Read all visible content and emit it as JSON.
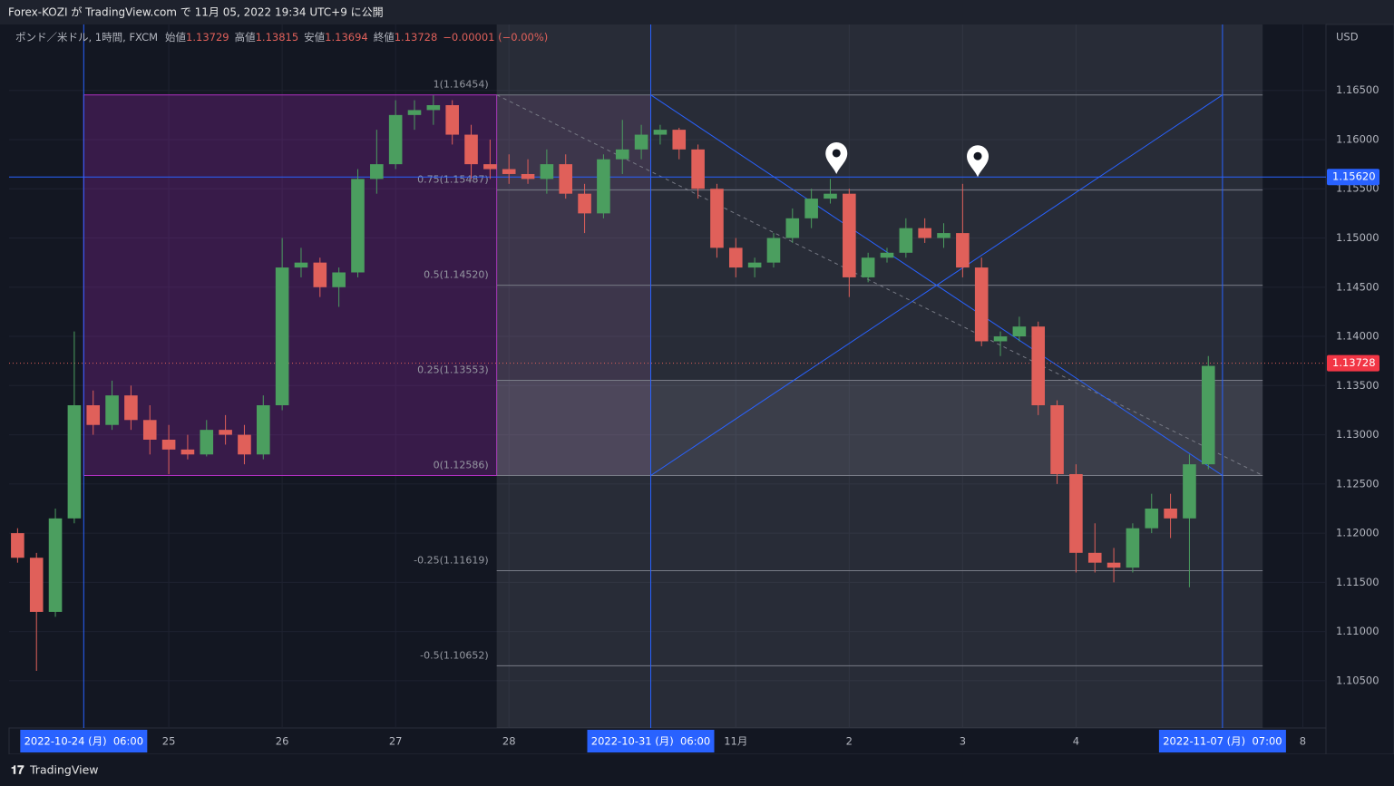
{
  "header": "Forex-KOZI が TradingView.com で 11月 05, 2022 19:34 UTC+9 に公開",
  "footer": "TradingView",
  "chart_data": {
    "type": "candlestick",
    "symbol": "ポンド／米ドル, 1時間, FXCM",
    "ohlc_legend": [
      {
        "name": "始値",
        "value": 1.13729
      },
      {
        "name": "高値",
        "value": 1.13815
      },
      {
        "name": "安値",
        "value": 1.13694
      },
      {
        "name": "終値",
        "value": 1.13728
      }
    ],
    "change": "−0.00001 (−0.00%)",
    "currency": "USD",
    "up_color": "#4b9e5f",
    "down_color": "#e0605a",
    "ylim": [
      1.1002,
      1.1717
    ],
    "yticks": [
      {
        "value": 1.105,
        "label": "1.10500"
      },
      {
        "value": 1.11,
        "label": "1.11000"
      },
      {
        "value": 1.115,
        "label": "1.11500"
      },
      {
        "value": 1.12,
        "label": "1.12000"
      },
      {
        "value": 1.125,
        "label": "1.12500"
      },
      {
        "value": 1.13,
        "label": "1.13000"
      },
      {
        "value": 1.135,
        "label": "1.13500"
      },
      {
        "value": 1.14,
        "label": "1.14000"
      },
      {
        "value": 1.145,
        "label": "1.14500"
      },
      {
        "value": 1.15,
        "label": "1.15000"
      },
      {
        "value": 1.155,
        "label": "1.15500"
      },
      {
        "value": 1.16,
        "label": "1.16000"
      },
      {
        "value": 1.165,
        "label": "1.16500"
      }
    ],
    "xlim": [
      -9.8,
      268.9
    ],
    "xticks": [
      {
        "value": 24,
        "label": "25"
      },
      {
        "value": 48,
        "label": "26"
      },
      {
        "value": 72,
        "label": "27"
      },
      {
        "value": 96,
        "label": "28"
      },
      {
        "value": 144,
        "label": "11月"
      },
      {
        "value": 168,
        "label": "2"
      },
      {
        "value": 192,
        "label": "3"
      },
      {
        "value": 216,
        "label": "4"
      },
      {
        "value": 264,
        "label": "8"
      }
    ],
    "crosshair_x": [
      {
        "value": 6,
        "label": "2022-10-24 (月)  06:00"
      },
      {
        "value": 126,
        "label": "2022-10-31 (月)  06:00"
      },
      {
        "value": 247,
        "label": "2022-11-07 (月)  07:00"
      }
    ],
    "hline": {
      "value": 1.1562,
      "label": "1.15620"
    },
    "last_price": {
      "value": 1.13728,
      "label": "1.13728"
    },
    "fib_x": [
      93.4,
      255.5
    ],
    "fib_levels": [
      {
        "value": 1.16454,
        "label": "1(1.16454)"
      },
      {
        "value": 1.15487,
        "label": "0.75(1.15487)"
      },
      {
        "value": 1.1452,
        "label": "0.5(1.14520)"
      },
      {
        "value": 1.13553,
        "label": "0.25(1.13553)"
      },
      {
        "value": 1.12586,
        "label": "0(1.12586)"
      },
      {
        "value": 1.11619,
        "label": "-0.25(1.11619)"
      },
      {
        "value": 1.10652,
        "label": "-0.5(1.10652)"
      }
    ],
    "markers": [
      {
        "x": 165.3,
        "y": 1.1565
      },
      {
        "x": 195.2,
        "y": 1.1562
      }
    ],
    "candles": {
      "x": [
        -8,
        -4,
        0,
        4,
        8,
        12,
        16,
        20,
        24,
        28,
        32,
        36,
        40,
        44,
        48,
        52,
        56,
        60,
        64,
        68,
        72,
        76,
        80,
        84,
        88,
        92,
        96,
        100,
        104,
        108,
        112,
        116,
        120,
        124,
        128,
        132,
        136,
        140,
        144,
        148,
        152,
        156,
        160,
        164,
        168,
        172,
        176,
        180,
        184,
        188,
        192,
        196,
        200,
        204,
        208,
        212,
        216,
        220,
        224,
        228,
        232,
        236,
        240,
        244
      ],
      "open": [
        1.12,
        1.1175,
        1.112,
        1.1215,
        1.133,
        1.131,
        1.134,
        1.1315,
        1.1295,
        1.1285,
        1.128,
        1.1305,
        1.13,
        1.128,
        1.133,
        1.147,
        1.1475,
        1.145,
        1.1465,
        1.156,
        1.1575,
        1.1625,
        1.163,
        1.1635,
        1.1605,
        1.1575,
        1.157,
        1.1565,
        1.156,
        1.1575,
        1.1545,
        1.1525,
        1.158,
        1.159,
        1.1605,
        1.161,
        1.159,
        1.155,
        1.149,
        1.147,
        1.1475,
        1.15,
        1.152,
        1.154,
        1.1545,
        1.146,
        1.148,
        1.1485,
        1.151,
        1.15,
        1.1505,
        1.147,
        1.1395,
        1.14,
        1.141,
        1.133,
        1.126,
        1.118,
        1.117,
        1.1165,
        1.1205,
        1.1225,
        1.1215,
        1.127
      ],
      "high": [
        1.1205,
        1.118,
        1.1225,
        1.1405,
        1.1345,
        1.1355,
        1.135,
        1.133,
        1.131,
        1.13,
        1.1315,
        1.132,
        1.131,
        1.134,
        1.15,
        1.149,
        1.148,
        1.147,
        1.157,
        1.161,
        1.164,
        1.164,
        1.1645,
        1.164,
        1.1615,
        1.16,
        1.1585,
        1.158,
        1.159,
        1.1585,
        1.1555,
        1.1585,
        1.162,
        1.1615,
        1.1615,
        1.1612,
        1.1595,
        1.1555,
        1.15,
        1.148,
        1.1505,
        1.153,
        1.155,
        1.156,
        1.155,
        1.1485,
        1.149,
        1.152,
        1.152,
        1.1515,
        1.1555,
        1.148,
        1.1405,
        1.142,
        1.1415,
        1.1335,
        1.127,
        1.121,
        1.1185,
        1.121,
        1.124,
        1.124,
        1.128,
        1.138
      ],
      "low": [
        1.117,
        1.106,
        1.1115,
        1.121,
        1.13,
        1.1305,
        1.1305,
        1.128,
        1.126,
        1.1275,
        1.1278,
        1.129,
        1.127,
        1.1275,
        1.1325,
        1.146,
        1.144,
        1.143,
        1.146,
        1.1545,
        1.157,
        1.161,
        1.1615,
        1.1595,
        1.156,
        1.156,
        1.1555,
        1.1555,
        1.1545,
        1.154,
        1.1505,
        1.152,
        1.1565,
        1.158,
        1.1595,
        1.158,
        1.154,
        1.148,
        1.146,
        1.146,
        1.147,
        1.1495,
        1.151,
        1.1535,
        1.144,
        1.1455,
        1.1475,
        1.148,
        1.1495,
        1.149,
        1.146,
        1.139,
        1.138,
        1.1395,
        1.132,
        1.125,
        1.116,
        1.116,
        1.115,
        1.116,
        1.12,
        1.1195,
        1.1145,
        1.1265
      ],
      "close": [
        1.1175,
        1.112,
        1.1215,
        1.133,
        1.131,
        1.134,
        1.1315,
        1.1295,
        1.1285,
        1.128,
        1.1305,
        1.13,
        1.128,
        1.133,
        1.147,
        1.1475,
        1.145,
        1.1465,
        1.156,
        1.1575,
        1.1625,
        1.163,
        1.1635,
        1.1605,
        1.1575,
        1.157,
        1.1565,
        1.156,
        1.1575,
        1.1545,
        1.1525,
        1.158,
        1.159,
        1.1605,
        1.161,
        1.159,
        1.155,
        1.149,
        1.147,
        1.1475,
        1.15,
        1.152,
        1.154,
        1.1545,
        1.146,
        1.148,
        1.1485,
        1.151,
        1.15,
        1.1505,
        1.147,
        1.1395,
        1.14,
        1.141,
        1.133,
        1.126,
        1.118,
        1.117,
        1.1165,
        1.1205,
        1.1225,
        1.1215,
        1.127,
        1.137
      ]
    }
  }
}
